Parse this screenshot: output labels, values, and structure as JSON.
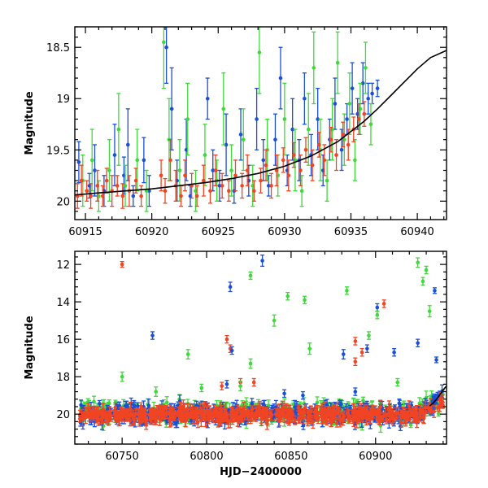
{
  "chart_data": [
    {
      "type": "scatter",
      "title": "",
      "xlabel": "",
      "ylabel": "Magnitude",
      "xlim": [
        60914.2,
        60942.2
      ],
      "ylim": [
        20.18,
        18.3
      ],
      "y_inverted": true,
      "xticks": [
        60915,
        60920,
        60925,
        60930,
        60935,
        60940
      ],
      "xtick_labels": [
        "60915",
        "60920",
        "60925",
        "60930",
        "60935",
        "60940"
      ],
      "yticks": [
        18.5,
        19,
        19.5,
        20
      ],
      "ytick_labels": [
        "18.5",
        "19",
        "19.5",
        "20"
      ],
      "series": [
        {
          "color": "#1a4fd6",
          "points": [
            [
              60914.5,
              19.62,
              0.2
            ],
            [
              60915.3,
              19.85,
              0.12
            ],
            [
              60915.7,
              19.7,
              0.25
            ],
            [
              60916.4,
              19.9,
              0.15
            ],
            [
              60917.2,
              19.55,
              0.3
            ],
            [
              60917.9,
              19.75,
              0.18
            ],
            [
              60918.2,
              19.45,
              0.35
            ],
            [
              60918.6,
              19.95,
              0.1
            ],
            [
              60919.4,
              19.6,
              0.22
            ],
            [
              60919.8,
              19.9,
              0.15
            ],
            [
              60921.1,
              18.5,
              0.35
            ],
            [
              60921.5,
              19.1,
              0.4
            ],
            [
              60921.9,
              19.8,
              0.2
            ],
            [
              60922.6,
              19.5,
              0.3
            ],
            [
              60922.9,
              19.95,
              0.1
            ],
            [
              60924.2,
              19.0,
              0.2
            ],
            [
              60924.6,
              19.7,
              0.2
            ],
            [
              60925.1,
              19.85,
              0.15
            ],
            [
              60925.6,
              19.45,
              0.3
            ],
            [
              60926.2,
              19.9,
              0.12
            ],
            [
              60926.7,
              19.35,
              0.25
            ],
            [
              60927.3,
              19.8,
              0.15
            ],
            [
              60927.9,
              19.2,
              0.3
            ],
            [
              60928.4,
              19.6,
              0.2
            ],
            [
              60928.8,
              19.85,
              0.1
            ],
            [
              60929.3,
              19.4,
              0.25
            ],
            [
              60929.7,
              18.8,
              0.3
            ],
            [
              60930.2,
              19.7,
              0.15
            ],
            [
              60930.6,
              19.3,
              0.3
            ],
            [
              60931.1,
              19.6,
              0.2
            ],
            [
              60931.5,
              19.0,
              0.25
            ],
            [
              60932.0,
              19.55,
              0.2
            ],
            [
              60932.5,
              19.2,
              0.3
            ],
            [
              60932.9,
              19.7,
              0.15
            ],
            [
              60933.4,
              19.4,
              0.2
            ],
            [
              60933.8,
              19.05,
              0.25
            ],
            [
              60934.3,
              19.5,
              0.2
            ],
            [
              60934.7,
              19.2,
              0.15
            ],
            [
              60935.1,
              18.9,
              0.25
            ],
            [
              60935.5,
              19.15,
              0.15
            ],
            [
              60935.9,
              18.85,
              0.2
            ],
            [
              60936.3,
              19.0,
              0.15
            ],
            [
              60936.6,
              18.95,
              0.1
            ],
            [
              60937.0,
              18.9,
              0.08
            ]
          ]
        },
        {
          "color": "#3fd93a",
          "points": [
            [
              60914.8,
              19.8,
              0.25
            ],
            [
              60915.5,
              19.6,
              0.3
            ],
            [
              60916.0,
              19.95,
              0.15
            ],
            [
              60916.8,
              19.7,
              0.3
            ],
            [
              60917.5,
              19.3,
              0.35
            ],
            [
              60918.0,
              19.85,
              0.2
            ],
            [
              60918.9,
              19.6,
              0.3
            ],
            [
              60919.6,
              19.9,
              0.2
            ],
            [
              60920.9,
              18.45,
              0.45
            ],
            [
              60921.3,
              19.4,
              0.4
            ],
            [
              60922.1,
              19.7,
              0.3
            ],
            [
              60922.7,
              19.2,
              0.35
            ],
            [
              60923.3,
              19.9,
              0.2
            ],
            [
              60924.0,
              19.55,
              0.3
            ],
            [
              60924.9,
              19.8,
              0.2
            ],
            [
              60925.4,
              19.1,
              0.35
            ],
            [
              60926.0,
              19.7,
              0.25
            ],
            [
              60926.9,
              19.4,
              0.3
            ],
            [
              60927.6,
              19.85,
              0.2
            ],
            [
              60928.1,
              18.55,
              0.4
            ],
            [
              60928.7,
              19.5,
              0.3
            ],
            [
              60929.5,
              19.75,
              0.2
            ],
            [
              60930.0,
              19.2,
              0.35
            ],
            [
              60930.8,
              19.6,
              0.3
            ],
            [
              60931.3,
              19.9,
              0.15
            ],
            [
              60931.8,
              19.3,
              0.35
            ],
            [
              60932.2,
              18.7,
              0.35
            ],
            [
              60932.7,
              19.5,
              0.3
            ],
            [
              60933.2,
              19.8,
              0.2
            ],
            [
              60933.6,
              19.3,
              0.3
            ],
            [
              60934.0,
              18.65,
              0.3
            ],
            [
              60934.5,
              19.4,
              0.25
            ],
            [
              60934.9,
              19.05,
              0.3
            ],
            [
              60935.3,
              19.6,
              0.2
            ],
            [
              60935.7,
              19.1,
              0.25
            ],
            [
              60936.1,
              18.7,
              0.25
            ],
            [
              60936.5,
              19.25,
              0.2
            ]
          ]
        },
        {
          "color": "#f04423",
          "points": [
            [
              60914.4,
              19.95,
              0.12
            ],
            [
              60914.7,
              19.8,
              0.15
            ],
            [
              60915.1,
              19.9,
              0.1
            ],
            [
              60915.4,
              19.95,
              0.12
            ],
            [
              60915.9,
              19.85,
              0.15
            ],
            [
              60916.3,
              19.95,
              0.1
            ],
            [
              60916.6,
              19.8,
              0.12
            ],
            [
              60917.0,
              19.9,
              0.15
            ],
            [
              60917.4,
              19.85,
              0.1
            ],
            [
              60917.8,
              19.95,
              0.12
            ],
            [
              60918.3,
              19.9,
              0.15
            ],
            [
              60918.8,
              19.8,
              0.12
            ],
            [
              60919.2,
              19.95,
              0.1
            ],
            [
              60920.7,
              19.75,
              0.15
            ],
            [
              60921.0,
              19.9,
              0.12
            ],
            [
              60921.4,
              19.6,
              0.2
            ],
            [
              60921.8,
              19.85,
              0.15
            ],
            [
              60922.2,
              19.95,
              0.1
            ],
            [
              60922.5,
              19.75,
              0.15
            ],
            [
              60923.0,
              19.85,
              0.12
            ],
            [
              60923.4,
              19.95,
              0.1
            ],
            [
              60923.9,
              19.8,
              0.15
            ],
            [
              60924.4,
              19.9,
              0.12
            ],
            [
              60924.8,
              19.7,
              0.15
            ],
            [
              60925.3,
              19.85,
              0.12
            ],
            [
              60925.8,
              19.9,
              0.1
            ],
            [
              60926.3,
              19.75,
              0.15
            ],
            [
              60926.8,
              19.85,
              0.12
            ],
            [
              60927.2,
              19.7,
              0.15
            ],
            [
              60927.7,
              19.9,
              0.1
            ],
            [
              60928.2,
              19.8,
              0.12
            ],
            [
              60928.6,
              19.65,
              0.15
            ],
            [
              60929.0,
              19.85,
              0.12
            ],
            [
              60929.4,
              19.7,
              0.15
            ],
            [
              60929.9,
              19.6,
              0.12
            ],
            [
              60930.3,
              19.75,
              0.15
            ],
            [
              60930.7,
              19.55,
              0.12
            ],
            [
              60931.2,
              19.7,
              0.15
            ],
            [
              60931.6,
              19.5,
              0.12
            ],
            [
              60932.1,
              19.65,
              0.15
            ],
            [
              60932.6,
              19.45,
              0.12
            ],
            [
              60933.0,
              19.6,
              0.15
            ],
            [
              60933.5,
              19.4,
              0.12
            ],
            [
              60933.9,
              19.55,
              0.15
            ],
            [
              60934.4,
              19.35,
              0.12
            ],
            [
              60934.8,
              19.45,
              0.15
            ],
            [
              60935.2,
              19.3,
              0.12
            ],
            [
              60935.6,
              19.2,
              0.15
            ],
            [
              60936.0,
              19.15,
              0.12
            ]
          ]
        }
      ],
      "model_curve": [
        [
          60914.2,
          19.94
        ],
        [
          60916,
          19.92
        ],
        [
          60918,
          19.9
        ],
        [
          60920,
          19.88
        ],
        [
          60922,
          19.85
        ],
        [
          60924,
          19.82
        ],
        [
          60926,
          19.78
        ],
        [
          60928,
          19.73
        ],
        [
          60930,
          19.66
        ],
        [
          60932,
          19.56
        ],
        [
          60934,
          19.42
        ],
        [
          60936,
          19.22
        ],
        [
          60937,
          19.1
        ],
        [
          60938,
          18.97
        ],
        [
          60939,
          18.84
        ],
        [
          60940,
          18.71
        ],
        [
          60941,
          18.6
        ],
        [
          60942.2,
          18.53
        ]
      ]
    },
    {
      "type": "scatter",
      "title": "",
      "xlabel": "HJD−2400000",
      "ylabel": "Magnitude",
      "xlim": [
        60722,
        60942
      ],
      "ylim": [
        21.6,
        11.3
      ],
      "y_inverted": true,
      "xticks": [
        60750,
        60800,
        60850,
        60900
      ],
      "xtick_labels": [
        "60750",
        "60800",
        "60850",
        "60900"
      ],
      "yticks": [
        12,
        14,
        16,
        18,
        20
      ],
      "ytick_labels": [
        "12",
        "14",
        "16",
        "18",
        "20"
      ],
      "outliers": [
        {
          "color": "#f04423",
          "points": [
            [
              60750,
              12.0,
              0.15
            ],
            [
              60812,
              16.0,
              0.2
            ],
            [
              60814,
              16.5,
              0.2
            ],
            [
              60828,
              18.3,
              0.2
            ],
            [
              60888,
              16.1,
              0.2
            ],
            [
              60892,
              16.7,
              0.2
            ],
            [
              60888,
              17.2,
              0.2
            ],
            [
              60905,
              14.1,
              0.2
            ],
            [
              60809,
              18.5,
              0.2
            ],
            [
              60820,
              18.3,
              0.2
            ]
          ]
        },
        {
          "color": "#1a4fd6",
          "points": [
            [
              60768,
              15.8,
              0.2
            ],
            [
              60814,
              13.2,
              0.25
            ],
            [
              60815,
              16.6,
              0.2
            ],
            [
              60833,
              11.8,
              0.3
            ],
            [
              60846,
              18.9,
              0.2
            ],
            [
              60857,
              19.0,
              0.2
            ],
            [
              60881,
              16.8,
              0.25
            ],
            [
              60895,
              16.5,
              0.2
            ],
            [
              60901,
              14.3,
              0.2
            ],
            [
              60911,
              16.7,
              0.2
            ],
            [
              60925,
              16.2,
              0.2
            ],
            [
              60935,
              13.4,
              0.15
            ],
            [
              60936,
              17.1,
              0.15
            ],
            [
              60812,
              18.4,
              0.2
            ],
            [
              60888,
              18.8,
              0.2
            ]
          ]
        },
        {
          "color": "#3fd93a",
          "points": [
            [
              60750,
              18.0,
              0.25
            ],
            [
              60770,
              18.8,
              0.25
            ],
            [
              60789,
              16.8,
              0.25
            ],
            [
              60797,
              18.6,
              0.2
            ],
            [
              60826,
              12.6,
              0.2
            ],
            [
              60826,
              17.3,
              0.25
            ],
            [
              60840,
              15.0,
              0.3
            ],
            [
              60848,
              13.7,
              0.2
            ],
            [
              60858,
              13.9,
              0.2
            ],
            [
              60861,
              16.5,
              0.3
            ],
            [
              60883,
              13.4,
              0.2
            ],
            [
              60896,
              15.8,
              0.2
            ],
            [
              60901,
              14.7,
              0.2
            ],
            [
              60925,
              11.9,
              0.25
            ],
            [
              60928,
              12.9,
              0.2
            ],
            [
              60930,
              12.3,
              0.2
            ],
            [
              60932,
              14.5,
              0.3
            ],
            [
              60913,
              18.3,
              0.2
            ],
            [
              60820,
              18.5,
              0.25
            ]
          ]
        }
      ],
      "baseline_band": [
        {
          "color": "#3fd93a",
          "x_range": [
            60725,
            60940
          ],
          "mag_center": 19.9,
          "mag_spread": 0.55,
          "n": 320
        },
        {
          "color": "#1a4fd6",
          "x_range": [
            60725,
            60940
          ],
          "mag_center": 20.0,
          "mag_spread": 0.5,
          "n": 420
        },
        {
          "color": "#f04423",
          "x_range": [
            60725,
            60940
          ],
          "mag_center": 20.05,
          "mag_spread": 0.35,
          "n": 520
        }
      ],
      "model_curve": [
        [
          60932,
          19.56
        ],
        [
          60934,
          19.42
        ],
        [
          60936,
          19.22
        ],
        [
          60938,
          18.97
        ],
        [
          60940,
          18.71
        ],
        [
          60942,
          18.5
        ]
      ]
    }
  ]
}
